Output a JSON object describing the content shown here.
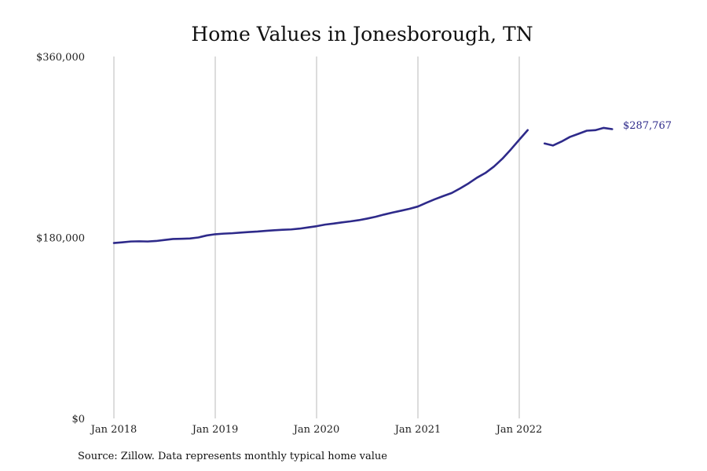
{
  "chart_data": {
    "type": "line",
    "title": "Home Values in Jonesborough, TN",
    "xlabel": "",
    "ylabel": "",
    "x_tick_labels": [
      "Jan 2018",
      "Jan 2019",
      "Jan 2020",
      "Jan 2021",
      "Jan 2022"
    ],
    "y_tick_labels": [
      "$0",
      "$180,000",
      "$360,000"
    ],
    "ylim": [
      0,
      360000
    ],
    "xlim": [
      "2018-01",
      "2022-12"
    ],
    "grid": "vertical lines at each January",
    "legend": "none",
    "color": "#2e2a8a",
    "end_label": "$287,767",
    "source_note": "Source: Zillow. Data represents monthly typical home value",
    "series": [
      {
        "x": [
          "2018-01",
          "2018-02",
          "2018-03",
          "2018-04",
          "2018-05",
          "2018-06",
          "2018-07",
          "2018-08",
          "2018-09",
          "2018-10",
          "2018-11",
          "2018-12",
          "2019-01",
          "2019-02",
          "2019-03",
          "2019-04",
          "2019-05",
          "2019-06",
          "2019-07",
          "2019-08",
          "2019-09",
          "2019-10",
          "2019-11",
          "2019-12",
          "2020-01",
          "2020-02",
          "2020-03",
          "2020-04",
          "2020-05",
          "2020-06",
          "2020-07",
          "2020-08",
          "2020-09",
          "2020-10",
          "2020-11",
          "2020-12",
          "2021-01",
          "2021-02",
          "2021-03",
          "2021-04",
          "2021-05",
          "2021-06",
          "2021-07",
          "2021-08",
          "2021-09",
          "2021-10",
          "2021-11",
          "2021-12",
          "2022-01",
          "2022-02",
          null,
          "2022-04",
          "2022-05",
          "2022-06",
          "2022-07",
          "2022-08",
          "2022-09",
          "2022-10",
          "2022-11",
          "2022-12"
        ],
        "values": [
          174500,
          175200,
          176000,
          176200,
          176000,
          176500,
          177500,
          178500,
          178700,
          179000,
          180000,
          182000,
          183200,
          183800,
          184200,
          184800,
          185400,
          185900,
          186600,
          187200,
          187700,
          188000,
          188800,
          190000,
          191200,
          192800,
          193800,
          195000,
          196000,
          197200,
          198800,
          200600,
          202800,
          204800,
          206600,
          208500,
          210800,
          214500,
          218000,
          221200,
          224200,
          228800,
          233800,
          239500,
          244200,
          250500,
          258300,
          267500,
          277200,
          286800,
          null,
          273500,
          271500,
          275400,
          280000,
          283100,
          286200,
          286700,
          289000,
          287767
        ]
      }
    ]
  }
}
